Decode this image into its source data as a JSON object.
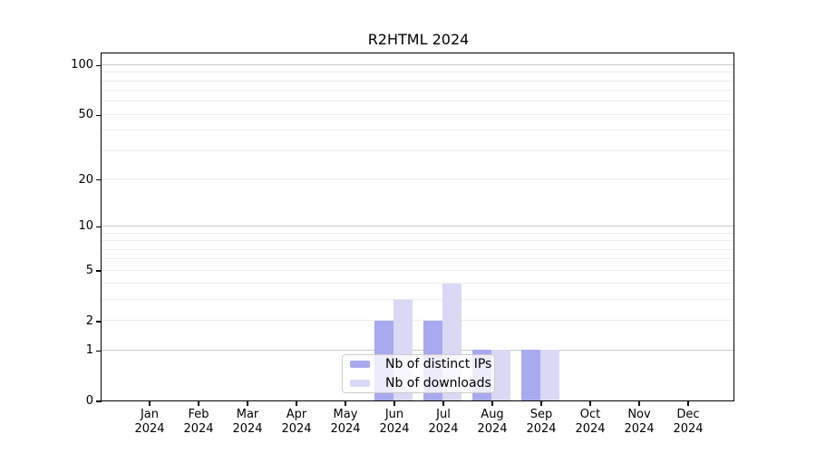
{
  "chart_data": {
    "type": "bar",
    "title": "R2HTML 2024",
    "x_year": "2024",
    "categories": [
      "Jan",
      "Feb",
      "Mar",
      "Apr",
      "May",
      "Jun",
      "Jul",
      "Aug",
      "Sep",
      "Oct",
      "Nov",
      "Dec"
    ],
    "series": [
      {
        "name": "Nb of distinct IPs",
        "color": "#a9a9ee",
        "values": [
          0,
          0,
          0,
          0,
          0,
          2,
          2,
          1,
          1,
          0,
          0,
          0
        ]
      },
      {
        "name": "Nb of downloads",
        "color": "#d9d9f6",
        "values": [
          0,
          0,
          0,
          0,
          0,
          3,
          4,
          1,
          1,
          0,
          0,
          0
        ]
      }
    ],
    "yscale": "log1p",
    "ylim": [
      0,
      117
    ],
    "y_ticks": [
      0,
      1,
      2,
      5,
      10,
      20,
      50,
      100
    ],
    "grid": {
      "major": [
        1,
        10,
        100
      ],
      "minor": [
        2,
        3,
        4,
        5,
        6,
        7,
        8,
        9,
        20,
        30,
        40,
        50,
        60,
        70,
        80,
        90
      ]
    },
    "legend_position": "bottom-center",
    "colors": {
      "frame": "#000000",
      "grid_major": "#c9c9c9",
      "grid_minor": "#ececec"
    }
  }
}
